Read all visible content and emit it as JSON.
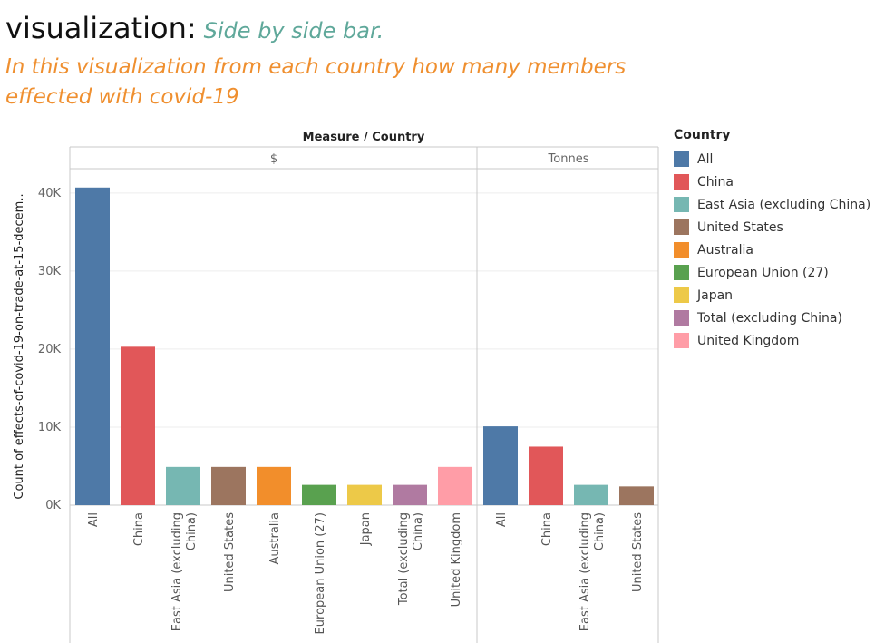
{
  "title": {
    "main": "visualization",
    "colon": ":",
    "sub": "Side by side bar.",
    "description": "In this visualization from each country how many members effected with covid-19"
  },
  "chart_data": {
    "type": "bar",
    "header": "Measure / Country",
    "ylabel": "Count of effects-of-covid-19-on-trade-at-15-decem..",
    "ylim": [
      0,
      43000
    ],
    "yticks": [
      0,
      10000,
      20000,
      30000,
      40000
    ],
    "ytick_labels": [
      "0K",
      "10K",
      "20K",
      "30K",
      "40K"
    ],
    "grid": true,
    "legend_position": "right",
    "legend_title": "Country",
    "panels": [
      {
        "name": "$",
        "categories": [
          "All",
          "China",
          "East Asia (excluding China)",
          "United States",
          "Australia",
          "European Union (27)",
          "Japan",
          "Total (excluding China)",
          "United Kingdom"
        ],
        "tick_lines": [
          [
            "All"
          ],
          [
            "China"
          ],
          [
            "East Asia (excluding",
            "China)"
          ],
          [
            "United States"
          ],
          [
            "Australia"
          ],
          [
            "European Union (27)"
          ],
          [
            "Japan"
          ],
          [
            "Total (excluding",
            "China)"
          ],
          [
            "United Kingdom"
          ]
        ],
        "values": [
          40700,
          20300,
          4900,
          4900,
          4900,
          2600,
          2600,
          2600,
          4900
        ]
      },
      {
        "name": "Tonnes",
        "categories": [
          "All",
          "China",
          "East Asia (excluding China)",
          "United States"
        ],
        "tick_lines": [
          [
            "All"
          ],
          [
            "China"
          ],
          [
            "East Asia (excluding",
            "China)"
          ],
          [
            "United States"
          ]
        ],
        "values": [
          10100,
          7500,
          2600,
          2400
        ]
      }
    ],
    "legend": [
      {
        "name": "All",
        "color": "#4e79a7"
      },
      {
        "name": "China",
        "color": "#e15759"
      },
      {
        "name": "East Asia (excluding China)",
        "color": "#76b7b2"
      },
      {
        "name": "United States",
        "color": "#9c755f"
      },
      {
        "name": "Australia",
        "color": "#f28e2b"
      },
      {
        "name": "European Union (27)",
        "color": "#59a14f"
      },
      {
        "name": "Japan",
        "color": "#edc948"
      },
      {
        "name": "Total (excluding China)",
        "color": "#b07aa1"
      },
      {
        "name": "United Kingdom",
        "color": "#ff9da7"
      }
    ]
  }
}
